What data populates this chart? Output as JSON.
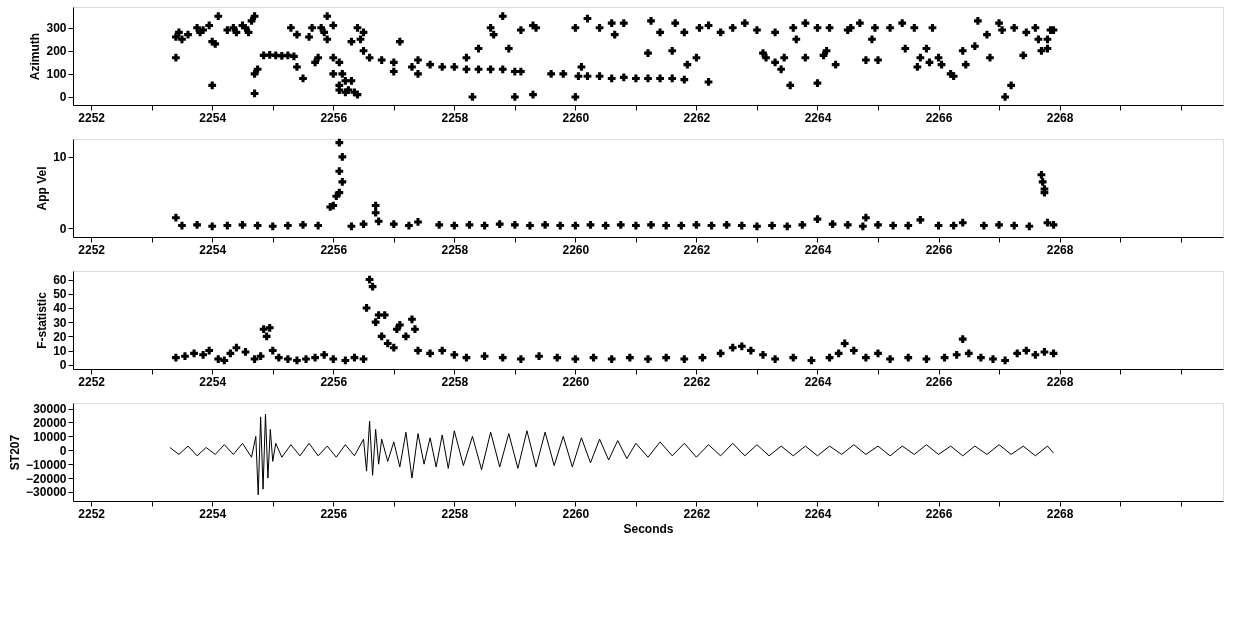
{
  "chart_data": [
    {
      "type": "scatter",
      "ylabel": "Azimuth",
      "marker": "cross",
      "color": "#000000",
      "xlim": [
        2251.7,
        2270.7
      ],
      "ylim": [
        -35,
        390
      ],
      "xticks": [
        2252,
        {
          "value": 2253,
          "label": null
        },
        2254,
        {
          "value": 2255,
          "label": null
        },
        2256,
        {
          "value": 2257,
          "label": null
        },
        2258,
        {
          "value": 2259,
          "label": null
        },
        2260,
        {
          "value": 2261,
          "label": null
        },
        2262,
        {
          "value": 2263,
          "label": null
        },
        2264,
        {
          "value": 2265,
          "label": null
        },
        2266,
        {
          "value": 2267,
          "label": null
        },
        2268,
        {
          "value": 2269,
          "label": null
        },
        {
          "value": 2270,
          "label": null
        }
      ],
      "yticks": [
        0,
        100,
        200,
        300
      ],
      "x": [
        2253.4,
        2253.45,
        2253.5,
        2253.6,
        2253.4,
        2253.75,
        2253.85,
        2253.95,
        2253.8,
        2254.0,
        2254.05,
        2254.0,
        2254.1,
        2254.25,
        2254.35,
        2254.4,
        2254.5,
        2254.55,
        2254.6,
        2254.65,
        2254.7,
        2254.7,
        2254.75,
        2254.7,
        2254.85,
        2254.95,
        2255.05,
        2255.15,
        2255.25,
        2255.35,
        2255.4,
        2255.5,
        2255.3,
        2255.4,
        2255.6,
        2255.65,
        2255.7,
        2255.75,
        2255.8,
        2255.85,
        2255.9,
        2255.9,
        2256.0,
        2256.0,
        2256.0,
        2256.1,
        2256.1,
        2256.1,
        2256.15,
        2256.2,
        2256.2,
        2256.25,
        2256.3,
        2256.3,
        2256.35,
        2256.4,
        2256.4,
        2256.45,
        2256.5,
        2256.5,
        2256.6,
        2256.8,
        2257.0,
        2257.0,
        2257.1,
        2257.3,
        2257.4,
        2257.4,
        2257.6,
        2257.8,
        2258.0,
        2258.2,
        2258.2,
        2258.3,
        2258.4,
        2258.4,
        2258.6,
        2258.6,
        2258.65,
        2258.8,
        2258.8,
        2258.9,
        2259.0,
        2259.0,
        2259.1,
        2259.1,
        2259.3,
        2259.35,
        2259.3,
        2259.6,
        2259.8,
        2260.0,
        2260.0,
        2260.05,
        2260.1,
        2260.2,
        2260.2,
        2260.4,
        2260.4,
        2260.6,
        2260.6,
        2260.65,
        2260.8,
        2260.8,
        2261.0,
        2261.2,
        2261.2,
        2261.25,
        2261.4,
        2261.4,
        2261.6,
        2261.6,
        2261.65,
        2261.8,
        2261.8,
        2261.85,
        2262.0,
        2262.05,
        2262.2,
        2262.2,
        2262.4,
        2262.6,
        2262.8,
        2263.0,
        2263.1,
        2263.15,
        2263.3,
        2263.3,
        2263.4,
        2263.45,
        2263.55,
        2263.6,
        2263.65,
        2263.8,
        2263.8,
        2264.0,
        2264.0,
        2264.1,
        2264.15,
        2264.2,
        2264.3,
        2264.5,
        2264.55,
        2264.7,
        2264.8,
        2264.9,
        2264.95,
        2265.0,
        2265.2,
        2265.4,
        2265.45,
        2265.6,
        2265.65,
        2265.7,
        2265.8,
        2265.85,
        2265.9,
        2266.0,
        2266.05,
        2266.2,
        2266.25,
        2266.4,
        2266.45,
        2266.6,
        2266.65,
        2266.8,
        2266.85,
        2267.0,
        2267.05,
        2267.1,
        2267.2,
        2267.25,
        2267.4,
        2267.45,
        2267.6,
        2267.65,
        2267.7,
        2267.8,
        2267.8,
        2267.85,
        2267.9
      ],
      "values": [
        260,
        280,
        250,
        270,
        170,
        300,
        290,
        310,
        280,
        240,
        230,
        50,
        350,
        290,
        300,
        280,
        310,
        300,
        280,
        330,
        350,
        100,
        120,
        15,
        180,
        182,
        180,
        178,
        180,
        176,
        130,
        80,
        300,
        270,
        260,
        300,
        150,
        170,
        300,
        280,
        250,
        350,
        310,
        170,
        100,
        50,
        30,
        150,
        100,
        20,
        70,
        30,
        240,
        70,
        20,
        300,
        10,
        250,
        280,
        200,
        170,
        160,
        150,
        110,
        240,
        130,
        100,
        160,
        140,
        130,
        130,
        120,
        170,
        0,
        210,
        120,
        120,
        300,
        270,
        350,
        120,
        210,
        0,
        110,
        290,
        110,
        310,
        300,
        10,
        100,
        100,
        300,
        0,
        90,
        130,
        90,
        340,
        90,
        300,
        80,
        320,
        270,
        85,
        320,
        80,
        80,
        190,
        330,
        80,
        280,
        80,
        200,
        320,
        75,
        280,
        140,
        170,
        300,
        65,
        310,
        280,
        300,
        320,
        290,
        190,
        170,
        280,
        150,
        120,
        170,
        50,
        300,
        250,
        320,
        170,
        60,
        300,
        180,
        200,
        300,
        140,
        290,
        300,
        320,
        160,
        250,
        300,
        160,
        300,
        320,
        210,
        300,
        130,
        170,
        210,
        150,
        300,
        170,
        140,
        100,
        90,
        200,
        140,
        220,
        330,
        270,
        170,
        320,
        290,
        0,
        50,
        300,
        180,
        280,
        300,
        250,
        200,
        250,
        210,
        290,
        290
      ]
    },
    {
      "type": "scatter",
      "ylabel": "App Vel",
      "marker": "cross",
      "color": "#000000",
      "xlim": [
        2251.7,
        2270.7
      ],
      "ylim": [
        -1.2,
        12.5
      ],
      "xticks": [
        2252,
        {
          "value": 2253,
          "label": null
        },
        2254,
        {
          "value": 2255,
          "label": null
        },
        2256,
        {
          "value": 2257,
          "label": null
        },
        2258,
        {
          "value": 2259,
          "label": null
        },
        2260,
        {
          "value": 2261,
          "label": null
        },
        2262,
        {
          "value": 2263,
          "label": null
        },
        2264,
        {
          "value": 2265,
          "label": null
        },
        2266,
        {
          "value": 2267,
          "label": null
        },
        2268,
        {
          "value": 2269,
          "label": null
        },
        {
          "value": 2270,
          "label": null
        }
      ],
      "yticks": [
        0,
        10
      ],
      "x": [
        2253.4,
        2253.5,
        2253.75,
        2254.0,
        2254.25,
        2254.5,
        2254.75,
        2255.0,
        2255.25,
        2255.5,
        2255.75,
        2255.95,
        2256.0,
        2256.05,
        2256.1,
        2256.1,
        2256.1,
        2256.15,
        2256.15,
        2256.3,
        2256.5,
        2256.7,
        2256.7,
        2256.75,
        2257.0,
        2257.25,
        2257.4,
        2257.75,
        2258.0,
        2258.25,
        2258.5,
        2258.75,
        2259.0,
        2259.25,
        2259.5,
        2259.75,
        2260.0,
        2260.25,
        2260.5,
        2260.75,
        2261.0,
        2261.25,
        2261.5,
        2261.75,
        2262.0,
        2262.25,
        2262.5,
        2262.75,
        2263.0,
        2263.25,
        2263.5,
        2263.75,
        2264.0,
        2264.25,
        2264.5,
        2264.75,
        2264.8,
        2265.0,
        2265.25,
        2265.5,
        2265.7,
        2266.0,
        2266.25,
        2266.4,
        2266.75,
        2267.0,
        2267.25,
        2267.5,
        2267.7,
        2267.72,
        2267.75,
        2267.75,
        2267.8,
        2267.9
      ],
      "values": [
        1.5,
        0.4,
        0.5,
        0.3,
        0.4,
        0.5,
        0.4,
        0.3,
        0.4,
        0.5,
        0.4,
        3.0,
        3.2,
        4.5,
        12.0,
        8.0,
        5.0,
        10.0,
        6.5,
        0.3,
        0.6,
        3.2,
        2.2,
        1.0,
        0.6,
        0.4,
        0.9,
        0.5,
        0.4,
        0.5,
        0.4,
        0.6,
        0.5,
        0.4,
        0.5,
        0.4,
        0.4,
        0.5,
        0.4,
        0.5,
        0.4,
        0.5,
        0.4,
        0.4,
        0.5,
        0.4,
        0.5,
        0.4,
        0.3,
        0.4,
        0.3,
        0.5,
        1.3,
        0.6,
        0.5,
        0.3,
        1.5,
        0.5,
        0.4,
        0.4,
        1.2,
        0.4,
        0.4,
        0.8,
        0.4,
        0.5,
        0.4,
        0.3,
        7.5,
        6.5,
        5.5,
        5.0,
        0.8,
        0.5
      ]
    },
    {
      "type": "scatter",
      "ylabel": "F-statistic",
      "marker": "cross",
      "color": "#000000",
      "xlim": [
        2251.7,
        2270.7
      ],
      "ylim": [
        -3,
        66
      ],
      "xticks": [
        2252,
        {
          "value": 2253,
          "label": null
        },
        2254,
        {
          "value": 2255,
          "label": null
        },
        2256,
        {
          "value": 2257,
          "label": null
        },
        2258,
        {
          "value": 2259,
          "label": null
        },
        2260,
        {
          "value": 2261,
          "label": null
        },
        2262,
        {
          "value": 2263,
          "label": null
        },
        2264,
        {
          "value": 2265,
          "label": null
        },
        2266,
        {
          "value": 2267,
          "label": null
        },
        2268,
        {
          "value": 2269,
          "label": null
        },
        {
          "value": 2270,
          "label": null
        }
      ],
      "yticks": [
        0,
        10,
        20,
        30,
        40,
        50,
        60
      ],
      "x": [
        2253.4,
        2253.55,
        2253.7,
        2253.85,
        2253.95,
        2254.1,
        2254.2,
        2254.3,
        2254.4,
        2254.55,
        2254.7,
        2254.8,
        2254.85,
        2254.9,
        2254.95,
        2255.0,
        2255.1,
        2255.25,
        2255.4,
        2255.55,
        2255.7,
        2255.85,
        2256.0,
        2256.2,
        2256.35,
        2256.5,
        2256.55,
        2256.6,
        2256.65,
        2256.7,
        2256.75,
        2256.8,
        2256.85,
        2256.9,
        2257.0,
        2257.05,
        2257.1,
        2257.2,
        2257.3,
        2257.35,
        2257.4,
        2257.6,
        2257.8,
        2258.0,
        2258.2,
        2258.5,
        2258.8,
        2259.1,
        2259.4,
        2259.7,
        2260.0,
        2260.3,
        2260.6,
        2260.9,
        2261.2,
        2261.5,
        2261.8,
        2262.1,
        2262.4,
        2262.6,
        2262.75,
        2262.9,
        2263.1,
        2263.3,
        2263.6,
        2263.9,
        2264.2,
        2264.35,
        2264.45,
        2264.6,
        2264.8,
        2265.0,
        2265.2,
        2265.5,
        2265.8,
        2266.1,
        2266.3,
        2266.4,
        2266.5,
        2266.7,
        2266.9,
        2267.1,
        2267.3,
        2267.45,
        2267.6,
        2267.75,
        2267.9
      ],
      "values": [
        5,
        6,
        8,
        7,
        10,
        4,
        3,
        8,
        12,
        9,
        4,
        6,
        25,
        20,
        26,
        10,
        5,
        4,
        3,
        4,
        5,
        7,
        4,
        3,
        5,
        4,
        40,
        60,
        55,
        30,
        35,
        20,
        35,
        15,
        12,
        25,
        28,
        20,
        32,
        25,
        10,
        8,
        10,
        7,
        5,
        6,
        5,
        4,
        6,
        5,
        4,
        5,
        4,
        5,
        4,
        5,
        4,
        5,
        8,
        12,
        13,
        10,
        7,
        4,
        5,
        3,
        5,
        8,
        15,
        10,
        5,
        8,
        4,
        5,
        4,
        5,
        7,
        18,
        8,
        5,
        4,
        3,
        8,
        10,
        7,
        9,
        8
      ]
    },
    {
      "type": "line",
      "ylabel": "ST207",
      "xlabel": "Seconds",
      "color": "#000000",
      "line_style": "solid",
      "xlim": [
        2251.7,
        2270.7
      ],
      "ylim": [
        -36500,
        34000
      ],
      "xticks": [
        2252,
        {
          "value": 2253,
          "label": null
        },
        2254,
        {
          "value": 2255,
          "label": null
        },
        2256,
        {
          "value": 2257,
          "label": null
        },
        2258,
        {
          "value": 2259,
          "label": null
        },
        2260,
        {
          "value": 2261,
          "label": null
        },
        2262,
        {
          "value": 2263,
          "label": null
        },
        2264,
        {
          "value": 2265,
          "label": null
        },
        2266,
        {
          "value": 2267,
          "label": null
        },
        2268,
        {
          "value": 2269,
          "label": null
        },
        {
          "value": 2270,
          "label": null
        }
      ],
      "yticks": [
        -30000,
        -20000,
        -10000,
        0,
        10000,
        20000,
        30000
      ],
      "x": [
        2253.3,
        2253.45,
        2253.6,
        2253.75,
        2253.9,
        2254.05,
        2254.2,
        2254.35,
        2254.5,
        2254.65,
        2254.72,
        2254.76,
        2254.8,
        2254.84,
        2254.88,
        2254.92,
        2254.96,
        2255.0,
        2255.05,
        2255.15,
        2255.3,
        2255.45,
        2255.6,
        2255.75,
        2255.9,
        2256.05,
        2256.2,
        2256.35,
        2256.5,
        2256.55,
        2256.6,
        2256.65,
        2256.7,
        2256.75,
        2256.8,
        2256.9,
        2257.0,
        2257.1,
        2257.2,
        2257.3,
        2257.4,
        2257.5,
        2257.6,
        2257.7,
        2257.8,
        2257.9,
        2258.0,
        2258.15,
        2258.3,
        2258.45,
        2258.6,
        2258.75,
        2258.9,
        2259.05,
        2259.2,
        2259.35,
        2259.5,
        2259.65,
        2259.8,
        2259.95,
        2260.1,
        2260.25,
        2260.4,
        2260.55,
        2260.7,
        2260.85,
        2261.0,
        2261.2,
        2261.4,
        2261.6,
        2261.8,
        2262.0,
        2262.2,
        2262.4,
        2262.6,
        2262.8,
        2263.0,
        2263.2,
        2263.4,
        2263.6,
        2263.8,
        2264.0,
        2264.2,
        2264.4,
        2264.6,
        2264.8,
        2265.0,
        2265.2,
        2265.4,
        2265.6,
        2265.8,
        2266.0,
        2266.2,
        2266.4,
        2266.6,
        2266.8,
        2267.0,
        2267.2,
        2267.4,
        2267.6,
        2267.8,
        2267.9
      ],
      "values": [
        2000,
        -3000,
        3000,
        -4000,
        2000,
        -3000,
        4000,
        -3000,
        5000,
        -5000,
        10000,
        -32000,
        24000,
        -28000,
        26000,
        -20000,
        15000,
        -8000,
        5000,
        -5000,
        4000,
        -4000,
        5000,
        -4000,
        3000,
        -5000,
        4000,
        -4000,
        8000,
        -15000,
        21000,
        -18000,
        15000,
        -10000,
        8000,
        -8000,
        6000,
        -12000,
        13000,
        -20000,
        12000,
        -10000,
        9000,
        -12000,
        11000,
        -13000,
        14000,
        -11000,
        10000,
        -14000,
        13000,
        -12000,
        12000,
        -13000,
        14000,
        -12000,
        13000,
        -11000,
        10000,
        -12000,
        9000,
        -9000,
        8000,
        -7000,
        7000,
        -6000,
        5000,
        -5000,
        6000,
        -4000,
        5000,
        -5000,
        4000,
        -4000,
        5000,
        -4000,
        4000,
        -4000,
        3000,
        -4000,
        3000,
        -4000,
        3000,
        -3000,
        4000,
        -3000,
        3000,
        -4000,
        3000,
        -3000,
        4000,
        -3000,
        3000,
        -4000,
        3000,
        -3000,
        4000,
        -3000,
        3000,
        -4000,
        3000,
        -2000
      ]
    }
  ]
}
